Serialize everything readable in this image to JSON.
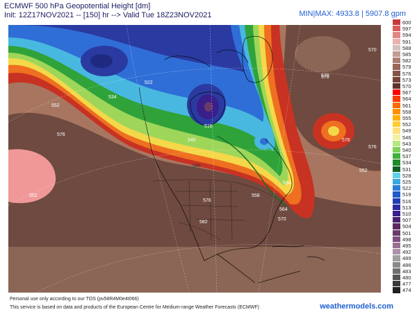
{
  "header": {
    "title": "ECMWF 500 hPa Geopotential Height [dm]",
    "init_line": "Init: 12Z17NOV2021 -- [150] hr --> Valid Tue 18Z23NOV2021",
    "minmax": "MIN|MAX: 4933.8 | 5907.8 gpm"
  },
  "map": {
    "contour_labels": [
      "570",
      "570",
      "576",
      "552",
      "576",
      "552",
      "570",
      "576",
      "534",
      "516",
      "540",
      "534",
      "546",
      "558",
      "564",
      "570",
      "576",
      "582",
      "522",
      "552"
    ],
    "colors": {
      "water_deep": "#a87660",
      "brown_mid": "#8b6555",
      "brown_dark": "#6e4a40",
      "red": "#c83222",
      "orange": "#ee7020",
      "yellow": "#f4d84a",
      "lime": "#9ed65a",
      "green": "#2fa33a",
      "cyan": "#49b8e0",
      "blue": "#2f6ed6",
      "navy": "#2a3aa0",
      "pink": "#f09898"
    }
  },
  "scale": {
    "labels": [
      "600",
      "597",
      "594",
      "591",
      "588",
      "585",
      "582",
      "579",
      "576",
      "573",
      "570",
      "567",
      "564",
      "561",
      "558",
      "555",
      "552",
      "549",
      "546",
      "543",
      "540",
      "537",
      "534",
      "531",
      "528",
      "525",
      "522",
      "519",
      "516",
      "513",
      "510",
      "507",
      "504",
      "501",
      "498",
      "495",
      "492",
      "489",
      "486",
      "483",
      "480",
      "477",
      "474"
    ],
    "colors": [
      "#c43a3a",
      "#d95a5a",
      "#e28585",
      "#ebb0b0",
      "#d4c1bb",
      "#c29d92",
      "#ac7f70",
      "#976656",
      "#865447",
      "#744439",
      "#5e3428",
      "#ff0000",
      "#ff3a00",
      "#ff6a00",
      "#ff8f00",
      "#ffb000",
      "#ffcc33",
      "#ffe07a",
      "#f5f0a0",
      "#b6e880",
      "#7ed25a",
      "#3fb03c",
      "#1f8a2a",
      "#0f6020",
      "#5fd0e8",
      "#3aa8e0",
      "#2a7dd8",
      "#1e5ac8",
      "#1d3fb5",
      "#2c2aa0",
      "#3a1e8a",
      "#4a2070",
      "#5a2860",
      "#6a3a6a",
      "#7e5080",
      "#96708e",
      "#ae90a8",
      "#a0a0a0",
      "#8a8a8a",
      "#707070",
      "#555555",
      "#3a3a3a",
      "#202020"
    ]
  },
  "footer": {
    "disclaimer": "Personal use only according to our TOS (pv58R4M0e4t066)",
    "credit": "This service is based on data and products of the European Centre for Medium-range Weather Forecasts (ECMWF)",
    "brand": "weathermodels.com"
  }
}
